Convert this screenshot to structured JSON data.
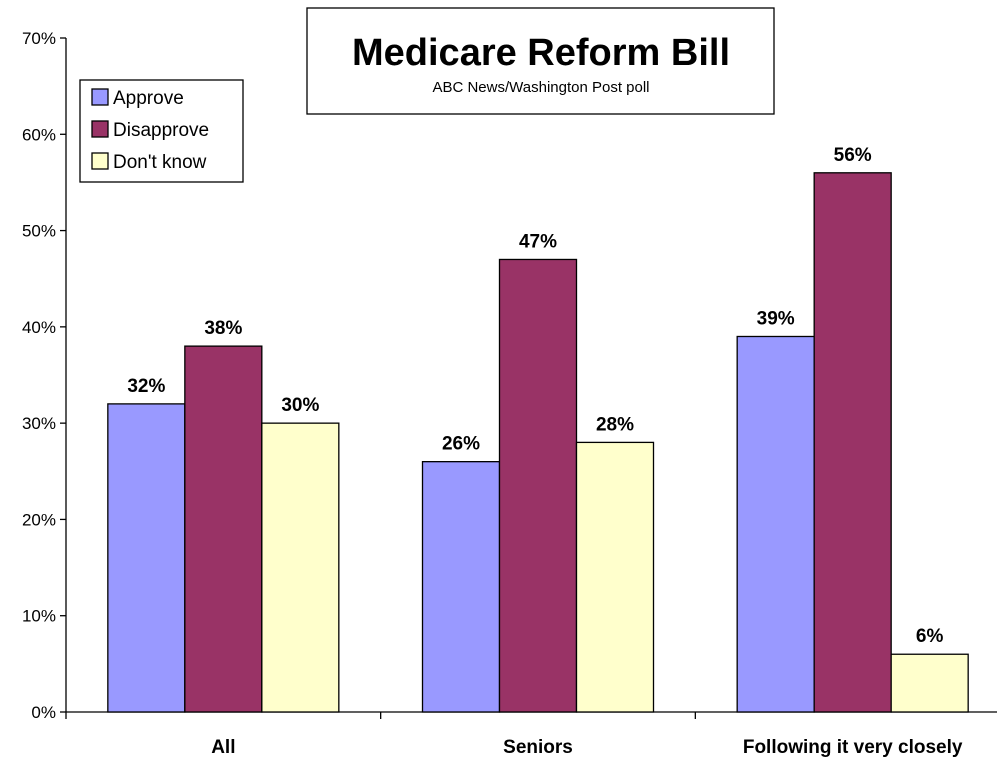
{
  "chart_data": {
    "type": "bar",
    "title": "Medicare Reform Bill",
    "subtitle": "ABC News/Washington Post poll",
    "categories": [
      "All",
      "Seniors",
      "Following it very closely"
    ],
    "series": [
      {
        "name": "Approve",
        "values": [
          32,
          26,
          39
        ],
        "labels": [
          "32%",
          "26%",
          "39%"
        ]
      },
      {
        "name": "Disapprove",
        "values": [
          38,
          47,
          56
        ],
        "labels": [
          "38%",
          "47%",
          "56%"
        ]
      },
      {
        "name": "Don't know",
        "values": [
          30,
          28,
          6
        ],
        "labels": [
          "30%",
          "28%",
          "6%"
        ]
      }
    ],
    "ylim": [
      0,
      70
    ],
    "yticks": [
      {
        "value": 0,
        "label": "0%"
      },
      {
        "value": 10,
        "label": "10%"
      },
      {
        "value": 20,
        "label": "20%"
      },
      {
        "value": 30,
        "label": "30%"
      },
      {
        "value": 40,
        "label": "40%"
      },
      {
        "value": 50,
        "label": "50%"
      },
      {
        "value": 60,
        "label": "60%"
      },
      {
        "value": 70,
        "label": "70%"
      }
    ],
    "xlabel": "",
    "ylabel": "",
    "grid": false,
    "legend_position": "top-left",
    "colors": {
      "Approve": "#9999ff",
      "Disapprove": "#993366",
      "Don't know": "#ffffcc"
    }
  }
}
